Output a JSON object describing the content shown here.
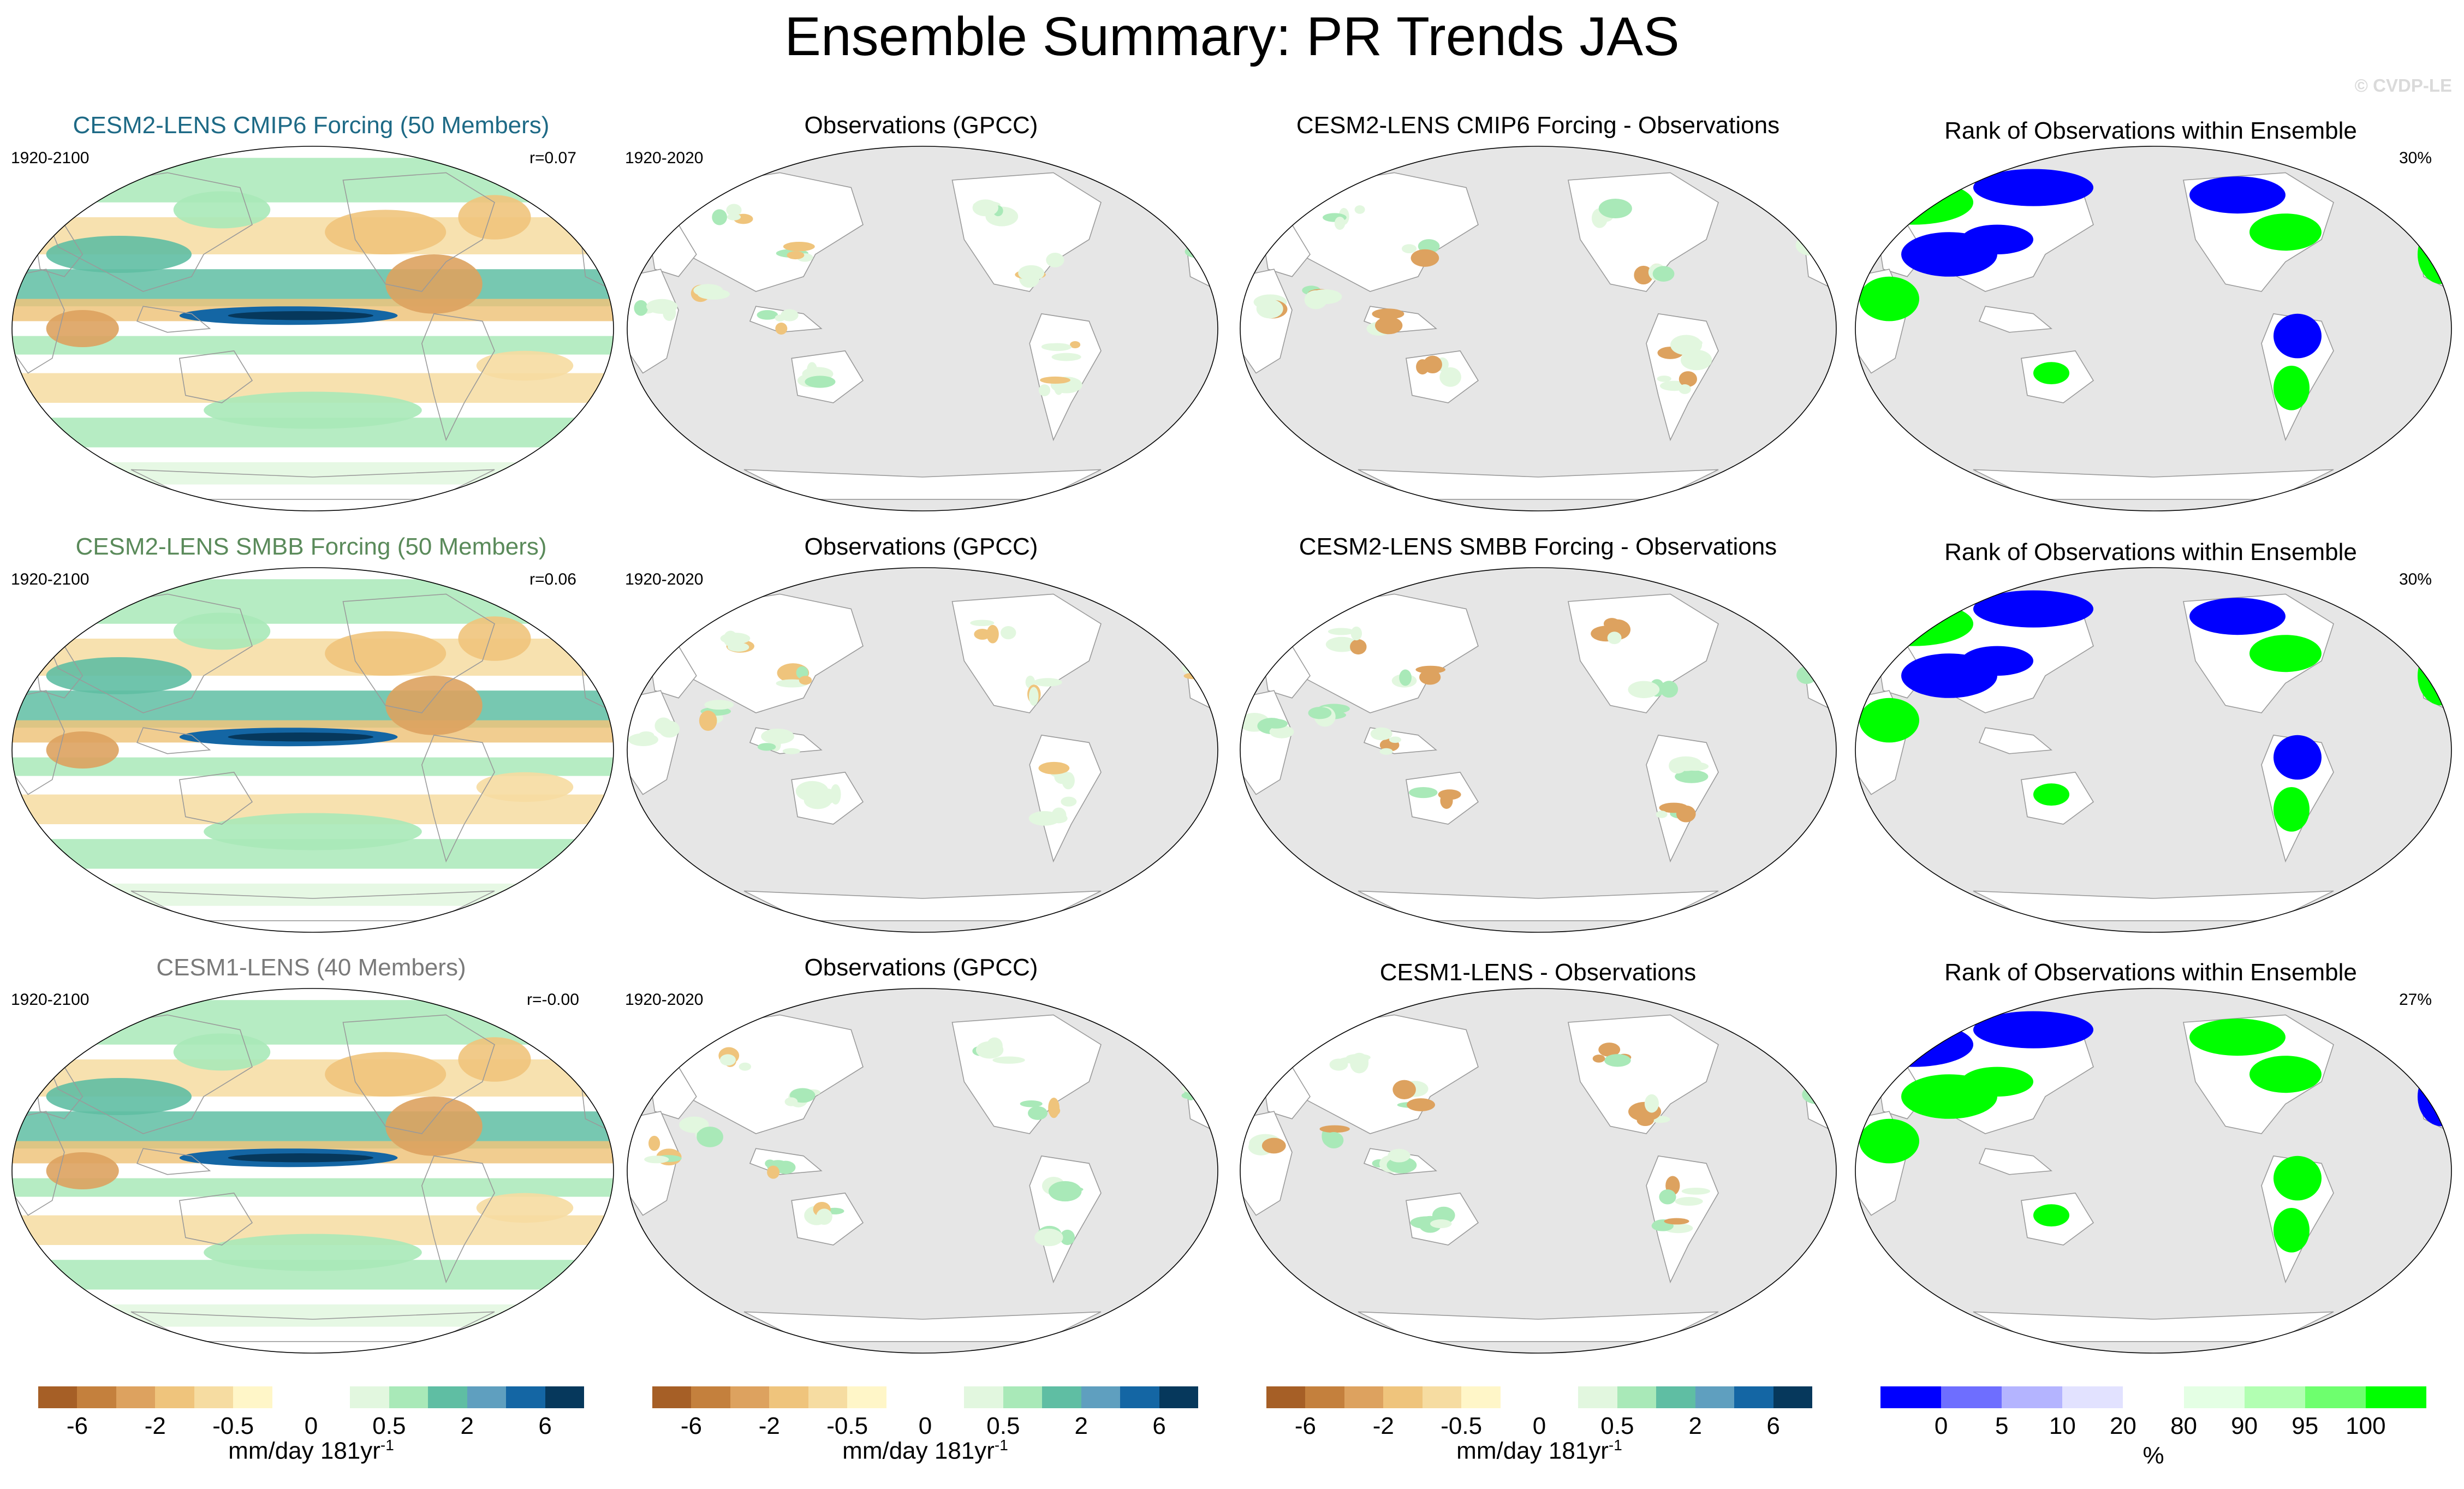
{
  "title": "Ensemble Summary: PR Trends JAS",
  "copyright": "© CVDP-LE",
  "colors": {
    "ocean_grey": "#e6e6e6",
    "coast": "#9a9a9a",
    "rank_blue": "#0000ff",
    "rank_green": "#00ff00",
    "model1_title": "#1e6a86",
    "model2_title": "#5a8a5a",
    "model3_title": "#7a7a7a"
  },
  "rows": [
    {
      "model_title": "CESM2-LENS CMIP6 Forcing (50 Members)",
      "model_period": "1920-2100",
      "correlation": "r=0.07",
      "obs_title": "Observations (GPCC)",
      "obs_period": "1920-2020",
      "diff_title": "CESM2-LENS CMIP6 Forcing - Observations",
      "rank_title": "Rank of Observations within Ensemble",
      "rank_percent": "30%"
    },
    {
      "model_title": "CESM2-LENS SMBB Forcing (50 Members)",
      "model_period": "1920-2100",
      "correlation": "r=0.06",
      "obs_title": "Observations (GPCC)",
      "obs_period": "1920-2020",
      "diff_title": "CESM2-LENS SMBB Forcing - Observations",
      "rank_title": "Rank of Observations within Ensemble",
      "rank_percent": "30%"
    },
    {
      "model_title": "CESM1-LENS (40 Members)",
      "model_period": "1920-2100",
      "correlation": "r=-0.00",
      "obs_title": "Observations (GPCC)",
      "obs_period": "1920-2020",
      "diff_title": "CESM1-LENS - Observations",
      "rank_title": "Rank of Observations within Ensemble",
      "rank_percent": "27%"
    }
  ],
  "trend_colorbar": {
    "colors": [
      "#a65f26",
      "#c4803d",
      "#dda25f",
      "#efc47c",
      "#f6dca1",
      "#fff6c8",
      "#ffffff",
      "#ffffff",
      "#e2f7df",
      "#a9e9b8",
      "#5fbea3",
      "#5f9fbf",
      "#1466a4",
      "#06385c"
    ],
    "ticks": [
      "-6",
      "-2",
      "-0.5",
      "0",
      "0.5",
      "2",
      "6"
    ],
    "units": "mm/day 181yr",
    "units_exponent": "-1"
  },
  "rank_colorbar": {
    "colors": [
      "#0000ff",
      "#6e6eff",
      "#b4b4ff",
      "#e2e2ff",
      "#ffffff",
      "#e4ffe4",
      "#b2ffb2",
      "#6eff6e",
      "#00ff00"
    ],
    "ticks": [
      "0",
      "5",
      "10",
      "20",
      "80",
      "90",
      "95",
      "100"
    ],
    "units": "%"
  }
}
